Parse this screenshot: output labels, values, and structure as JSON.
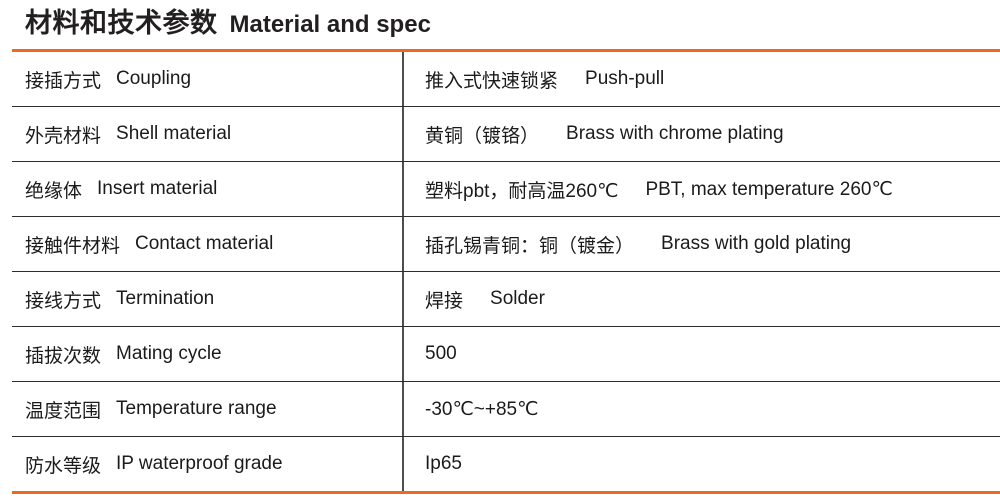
{
  "title": {
    "zh": "材料和技术参数",
    "en": "Material and spec"
  },
  "colors": {
    "accent_orange": "#ea6a24",
    "text": "#1b1b1b",
    "row_line": "#2e2c2c",
    "column_line": "#4e4c4c"
  },
  "table": {
    "rows": [
      {
        "label_zh": "接插方式",
        "label_en": "Coupling",
        "value_zh": "推入式快速锁紧",
        "value_en": "Push-pull"
      },
      {
        "label_zh": "外壳材料",
        "label_en": "Shell material",
        "value_zh": "黄铜（镀铬）",
        "value_en": "Brass with chrome plating"
      },
      {
        "label_zh": "绝缘体",
        "label_en": "Insert material",
        "value_zh": "塑料pbt，耐高温260℃",
        "value_en": "PBT, max temperature 260℃"
      },
      {
        "label_zh": "接触件材料",
        "label_en": "Contact material",
        "value_zh": "插孔锡青铜：铜（镀金）",
        "value_en": "Brass with gold plating"
      },
      {
        "label_zh": "接线方式",
        "label_en": "Termination",
        "value_zh": "焊接",
        "value_en": "Solder"
      },
      {
        "label_zh": "插拔次数",
        "label_en": "Mating cycle",
        "value_zh": "500",
        "value_en": ""
      },
      {
        "label_zh": "温度范围",
        "label_en": "Temperature range",
        "value_zh": "-30℃~+85℃",
        "value_en": ""
      },
      {
        "label_zh": "防水等级",
        "label_en": "IP waterproof grade",
        "value_zh": "Ip65",
        "value_en": ""
      }
    ]
  }
}
